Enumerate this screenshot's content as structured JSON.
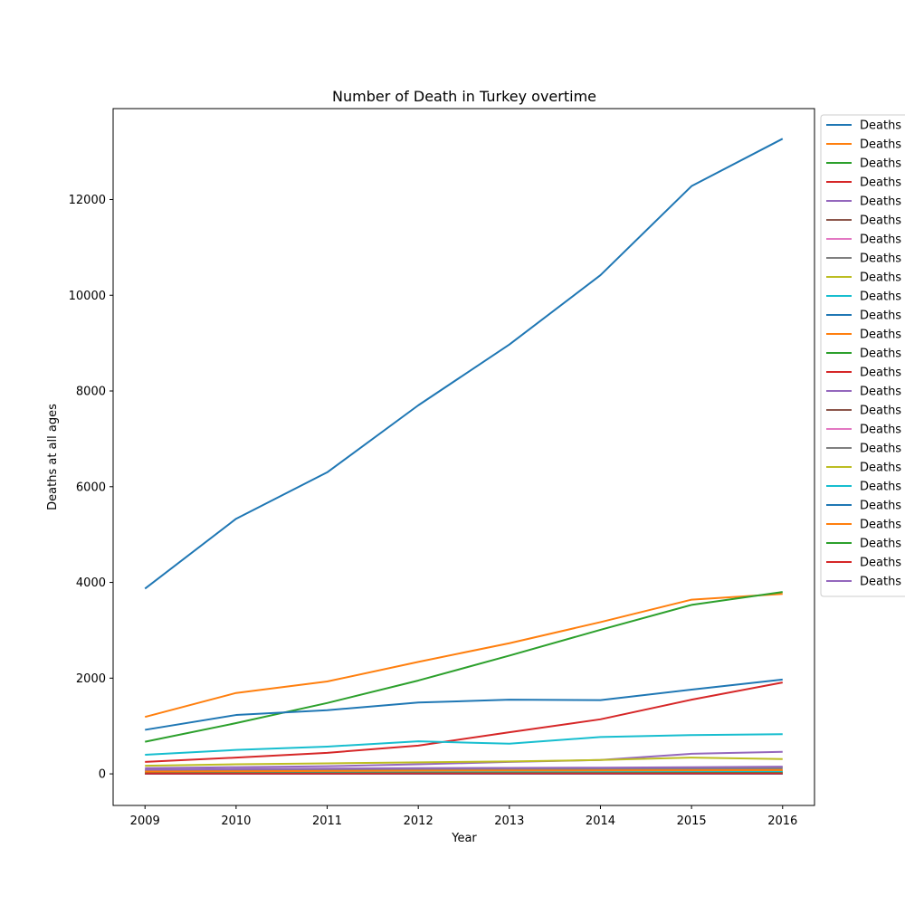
{
  "chart_data": {
    "type": "line",
    "title": "Number of Death in Turkey overtime",
    "xlabel": "Year",
    "ylabel": "Deaths at all ages",
    "x": [
      2009,
      2010,
      2011,
      2012,
      2013,
      2014,
      2015,
      2016
    ],
    "xticks": [
      "2009",
      "2010",
      "2011",
      "2012",
      "2013",
      "2014",
      "2015",
      "2016"
    ],
    "yticks": [
      0,
      2000,
      4000,
      6000,
      8000,
      10000,
      12000
    ],
    "ylim": [
      -660,
      13900
    ],
    "xlim": [
      2008.65,
      2016.35
    ],
    "grid": false,
    "legend_position": "outside-right",
    "series": [
      {
        "name": "Deaths",
        "color": "#1f77b4",
        "values": [
          3870,
          5330,
          6300,
          7700,
          8970,
          10420,
          12280,
          13270
        ]
      },
      {
        "name": "Deaths",
        "color": "#ff7f0e",
        "values": [
          1190,
          1690,
          1930,
          2340,
          2730,
          3170,
          3640,
          3760
        ]
      },
      {
        "name": "Deaths",
        "color": "#2ca02c",
        "values": [
          670,
          1060,
          1480,
          1950,
          2470,
          3010,
          3530,
          3800
        ]
      },
      {
        "name": "Deaths",
        "color": "#d62728",
        "values": [
          250,
          340,
          440,
          590,
          870,
          1140,
          1550,
          1910
        ]
      },
      {
        "name": "Deaths",
        "color": "#9467bd",
        "values": [
          120,
          140,
          160,
          200,
          250,
          290,
          420,
          460
        ]
      },
      {
        "name": "Deaths",
        "color": "#8c564b",
        "values": [
          20,
          25,
          25,
          30,
          30,
          30,
          35,
          35
        ]
      },
      {
        "name": "Deaths",
        "color": "#e377c2",
        "values": [
          15,
          15,
          20,
          20,
          25,
          25,
          30,
          30
        ]
      },
      {
        "name": "Deaths",
        "color": "#7f7f7f",
        "values": [
          80,
          90,
          100,
          110,
          120,
          110,
          130,
          140
        ]
      },
      {
        "name": "Deaths",
        "color": "#bcbd22",
        "values": [
          170,
          200,
          220,
          240,
          260,
          290,
          340,
          310
        ]
      },
      {
        "name": "Deaths",
        "color": "#17becf",
        "values": [
          400,
          500,
          570,
          680,
          630,
          770,
          810,
          830
        ]
      },
      {
        "name": "Deaths",
        "color": "#1f77b4",
        "values": [
          920,
          1230,
          1330,
          1490,
          1550,
          1540,
          1760,
          1970
        ]
      },
      {
        "name": "Deaths",
        "color": "#ff7f0e",
        "values": [
          10,
          12,
          12,
          15,
          15,
          15,
          18,
          18
        ]
      },
      {
        "name": "Deaths",
        "color": "#2ca02c",
        "values": [
          8,
          9,
          10,
          11,
          12,
          12,
          13,
          14
        ]
      },
      {
        "name": "Deaths",
        "color": "#d62728",
        "values": [
          5,
          6,
          6,
          7,
          8,
          8,
          9,
          9
        ]
      },
      {
        "name": "Deaths",
        "color": "#9467bd",
        "values": [
          40,
          45,
          50,
          55,
          60,
          60,
          65,
          70
        ]
      },
      {
        "name": "Deaths",
        "color": "#8c564b",
        "values": [
          3,
          3,
          4,
          4,
          4,
          5,
          5,
          5
        ]
      },
      {
        "name": "Deaths",
        "color": "#e377c2",
        "values": [
          2,
          2,
          2,
          3,
          3,
          3,
          3,
          4
        ]
      },
      {
        "name": "Deaths",
        "color": "#7f7f7f",
        "values": [
          60,
          70,
          75,
          80,
          90,
          95,
          100,
          110
        ]
      },
      {
        "name": "Deaths",
        "color": "#bcbd22",
        "values": [
          30,
          35,
          35,
          40,
          45,
          45,
          50,
          55
        ]
      },
      {
        "name": "Deaths",
        "color": "#17becf",
        "values": [
          25,
          28,
          30,
          32,
          35,
          38,
          40,
          42
        ]
      },
      {
        "name": "Deaths",
        "color": "#1f77b4",
        "values": [
          1,
          1,
          1,
          1,
          1,
          1,
          1,
          1
        ]
      },
      {
        "name": "Deaths",
        "color": "#ff7f0e",
        "values": [
          50,
          55,
          60,
          65,
          70,
          72,
          75,
          80
        ]
      },
      {
        "name": "Deaths",
        "color": "#2ca02c",
        "values": [
          12,
          13,
          14,
          15,
          16,
          17,
          18,
          19
        ]
      },
      {
        "name": "Deaths",
        "color": "#d62728",
        "values": [
          6,
          7,
          7,
          8,
          8,
          9,
          9,
          10
        ]
      },
      {
        "name": "Deaths",
        "color": "#9467bd",
        "values": [
          90,
          100,
          110,
          120,
          125,
          130,
          140,
          150
        ]
      }
    ]
  }
}
